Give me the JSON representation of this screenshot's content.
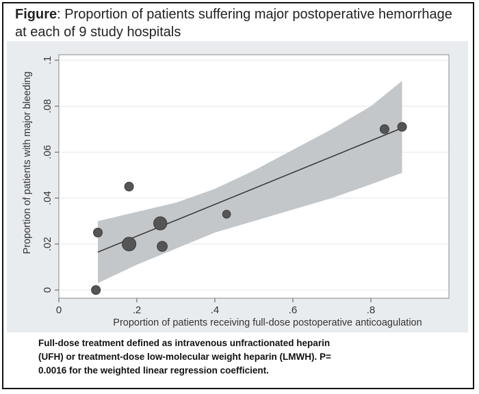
{
  "figure": {
    "title_bold": "Figure",
    "title_rest": ": Proportion of patients suffering major postoperative hemorrhage at each of 9 study hospitals",
    "footnote_line1": "Full-dose treatment defined as intravenous unfractionated heparin",
    "footnote_line2": "(UFH) or treatment-dose low-molecular weight heparin (LMWH).  P=",
    "footnote_line3": "0.0016 for the weighted linear regression coefficient."
  },
  "chart_data": {
    "type": "scatter",
    "xlabel": "Proportion of patients receiving full-dose postoperative anticoagulation",
    "ylabel": "Proportion of patients with major bleeding",
    "xlim": [
      0,
      1
    ],
    "ylim": [
      0,
      0.1
    ],
    "xticks": [
      0,
      0.2,
      0.4,
      0.6,
      0.8
    ],
    "xtick_labels": [
      "0",
      ".2",
      ".4",
      ".6",
      ".8"
    ],
    "yticks": [
      0,
      0.02,
      0.04,
      0.06,
      0.08,
      0.1
    ],
    "ytick_labels": [
      "0",
      ".02",
      ".04",
      ".06",
      ".08",
      ".1"
    ],
    "grid": true,
    "points": [
      {
        "x": 0.095,
        "y": 0.0,
        "weight": 1
      },
      {
        "x": 0.1,
        "y": 0.025,
        "weight": 1
      },
      {
        "x": 0.18,
        "y": 0.045,
        "weight": 1
      },
      {
        "x": 0.18,
        "y": 0.02,
        "weight": 2.4
      },
      {
        "x": 0.26,
        "y": 0.029,
        "weight": 2.2
      },
      {
        "x": 0.265,
        "y": 0.019,
        "weight": 1.3
      },
      {
        "x": 0.43,
        "y": 0.033,
        "weight": 0.8
      },
      {
        "x": 0.835,
        "y": 0.07,
        "weight": 1
      },
      {
        "x": 0.88,
        "y": 0.071,
        "weight": 1
      }
    ],
    "fit_line": {
      "x": [
        0.1,
        0.88
      ],
      "y": [
        0.0165,
        0.0705
      ]
    },
    "confidence_band": {
      "x": [
        0.1,
        0.2,
        0.3,
        0.4,
        0.5,
        0.6,
        0.7,
        0.8,
        0.88
      ],
      "upper": [
        0.03,
        0.034,
        0.038,
        0.044,
        0.052,
        0.061,
        0.07,
        0.08,
        0.091
      ],
      "lower": [
        0.003,
        0.011,
        0.018,
        0.025,
        0.03,
        0.035,
        0.04,
        0.046,
        0.051
      ]
    },
    "colors": {
      "points": "#555555",
      "band": "#c4c7ca",
      "line": "#333333",
      "grid": "#ffffff"
    }
  }
}
